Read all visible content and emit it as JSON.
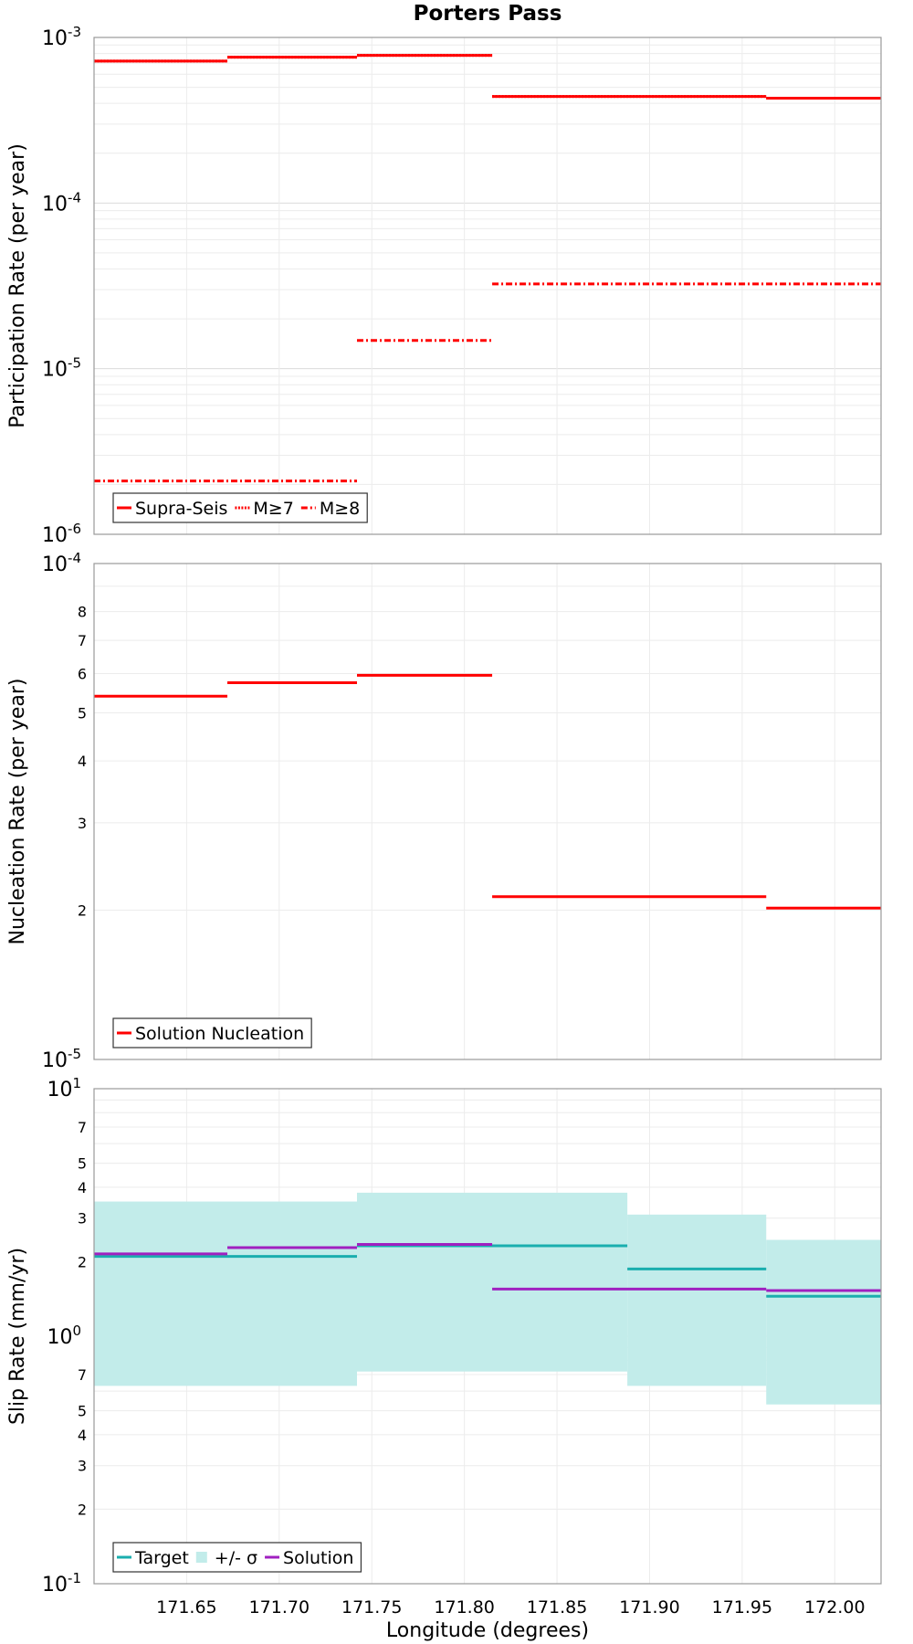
{
  "chart_data": [
    {
      "type": "line",
      "subtype": "step",
      "title": "Porters Pass",
      "xlabel": "",
      "ylabel": "Participation Rate (per year)",
      "yscale": "log",
      "xlim": [
        171.6,
        172.025
      ],
      "ylim": [
        1e-06,
        0.001
      ],
      "yticks": [
        {
          "base": "10",
          "exp": "-3",
          "value": 0.001
        },
        {
          "base": "10",
          "exp": "-4",
          "value": 0.0001
        },
        {
          "base": "10",
          "exp": "-5",
          "value": 1e-05
        },
        {
          "base": "10",
          "exp": "-6",
          "value": 1e-06
        }
      ],
      "legend": {
        "position": "bottom-left",
        "entries": [
          "Supra-Seis",
          "M≥7",
          "M≥8"
        ]
      },
      "series": [
        {
          "name": "Supra-Seis",
          "style": "solid",
          "color": "#ff0000",
          "segments": [
            [
              171.6,
              171.672,
              0.00072
            ],
            [
              171.672,
              171.742,
              0.00076
            ],
            [
              171.742,
              171.815,
              0.00078
            ],
            [
              171.815,
              171.963,
              0.00044
            ],
            [
              171.963,
              172.025,
              0.00043
            ]
          ]
        },
        {
          "name": "M≥7",
          "style": "dotted",
          "color": "#ff0000",
          "segments": [
            [
              171.6,
              171.672,
              0.00072
            ],
            [
              171.672,
              171.742,
              0.00076
            ],
            [
              171.742,
              171.815,
              0.00078
            ],
            [
              171.815,
              171.963,
              0.00044
            ],
            [
              171.963,
              172.025,
              0.00043
            ]
          ]
        },
        {
          "name": "M≥8",
          "style": "dashdot",
          "color": "#ff0000",
          "segments": [
            [
              171.6,
              171.742,
              2.1e-06
            ],
            [
              171.742,
              171.815,
              1.48e-05
            ],
            [
              171.815,
              172.025,
              3.25e-05
            ]
          ]
        }
      ]
    },
    {
      "type": "line",
      "subtype": "step",
      "title": "",
      "xlabel": "",
      "ylabel": "Nucleation Rate (per year)",
      "yscale": "log",
      "xlim": [
        171.6,
        172.025
      ],
      "ylim": [
        1e-05,
        0.0001
      ],
      "yticks": [
        {
          "base": "10",
          "exp": "-4",
          "value": 0.0001
        },
        {
          "base": "10",
          "exp": "-5",
          "value": 1e-05
        }
      ],
      "yminor_labels": [
        {
          "label": "8",
          "value": 8e-05
        },
        {
          "label": "7",
          "value": 7e-05
        },
        {
          "label": "6",
          "value": 6e-05
        },
        {
          "label": "5",
          "value": 5e-05
        },
        {
          "label": "4",
          "value": 4e-05
        },
        {
          "label": "3",
          "value": 3e-05
        },
        {
          "label": "2",
          "value": 2e-05
        }
      ],
      "legend": {
        "position": "bottom-left",
        "entries": [
          "Solution Nucleation"
        ]
      },
      "series": [
        {
          "name": "Solution Nucleation",
          "style": "solid",
          "color": "#ff0000",
          "segments": [
            [
              171.6,
              171.672,
              5.4e-05
            ],
            [
              171.672,
              171.742,
              5.75e-05
            ],
            [
              171.742,
              171.815,
              5.95e-05
            ],
            [
              171.815,
              171.963,
              2.13e-05
            ],
            [
              171.963,
              172.025,
              2.02e-05
            ]
          ]
        }
      ]
    },
    {
      "type": "area",
      "subtype": "step",
      "title": "",
      "xlabel": "Longitude (degrees)",
      "ylabel": "Slip Rate (mm/yr)",
      "yscale": "log",
      "xlim": [
        171.6,
        172.025
      ],
      "ylim": [
        0.1,
        10
      ],
      "yticks": [
        {
          "base": "10",
          "exp": "1",
          "value": 10
        },
        {
          "base": "10",
          "exp": "0",
          "value": 1
        },
        {
          "base": "10",
          "exp": "-1",
          "value": 0.1
        }
      ],
      "yminor_labels": [
        {
          "label": "7",
          "value": 7
        },
        {
          "label": "5",
          "value": 5
        },
        {
          "label": "4",
          "value": 4
        },
        {
          "label": "3",
          "value": 3
        },
        {
          "label": "2",
          "value": 2
        },
        {
          "label": "7",
          "value": 0.7
        },
        {
          "label": "5",
          "value": 0.5
        },
        {
          "label": "4",
          "value": 0.4
        },
        {
          "label": "3",
          "value": 0.3
        },
        {
          "label": "2",
          "value": 0.2
        }
      ],
      "xticks": [
        "171.65",
        "171.70",
        "171.75",
        "171.80",
        "171.85",
        "171.90",
        "171.95",
        "172.00"
      ],
      "legend": {
        "position": "bottom-left",
        "entries": [
          "Target",
          "+/- σ",
          "Solution"
        ]
      },
      "band": {
        "name": "+/- σ",
        "color": "#c2ecea",
        "segments": [
          [
            171.6,
            171.742,
            0.63,
            3.5
          ],
          [
            171.742,
            171.888,
            0.72,
            3.8
          ],
          [
            171.888,
            171.963,
            0.63,
            3.1
          ],
          [
            171.963,
            172.025,
            0.53,
            2.45
          ]
        ]
      },
      "series": [
        {
          "name": "Target",
          "style": "solid",
          "color": "#1aaeae",
          "segments": [
            [
              171.6,
              171.742,
              2.1
            ],
            [
              171.742,
              171.888,
              2.32
            ],
            [
              171.888,
              171.963,
              1.87
            ],
            [
              171.963,
              172.025,
              1.45
            ]
          ]
        },
        {
          "name": "Solution",
          "style": "solid",
          "color": "#a020c0",
          "segments": [
            [
              171.6,
              171.672,
              2.15
            ],
            [
              171.672,
              171.742,
              2.28
            ],
            [
              171.742,
              171.815,
              2.35
            ],
            [
              171.815,
              171.963,
              1.55
            ],
            [
              171.963,
              172.025,
              1.53
            ]
          ]
        }
      ]
    }
  ]
}
